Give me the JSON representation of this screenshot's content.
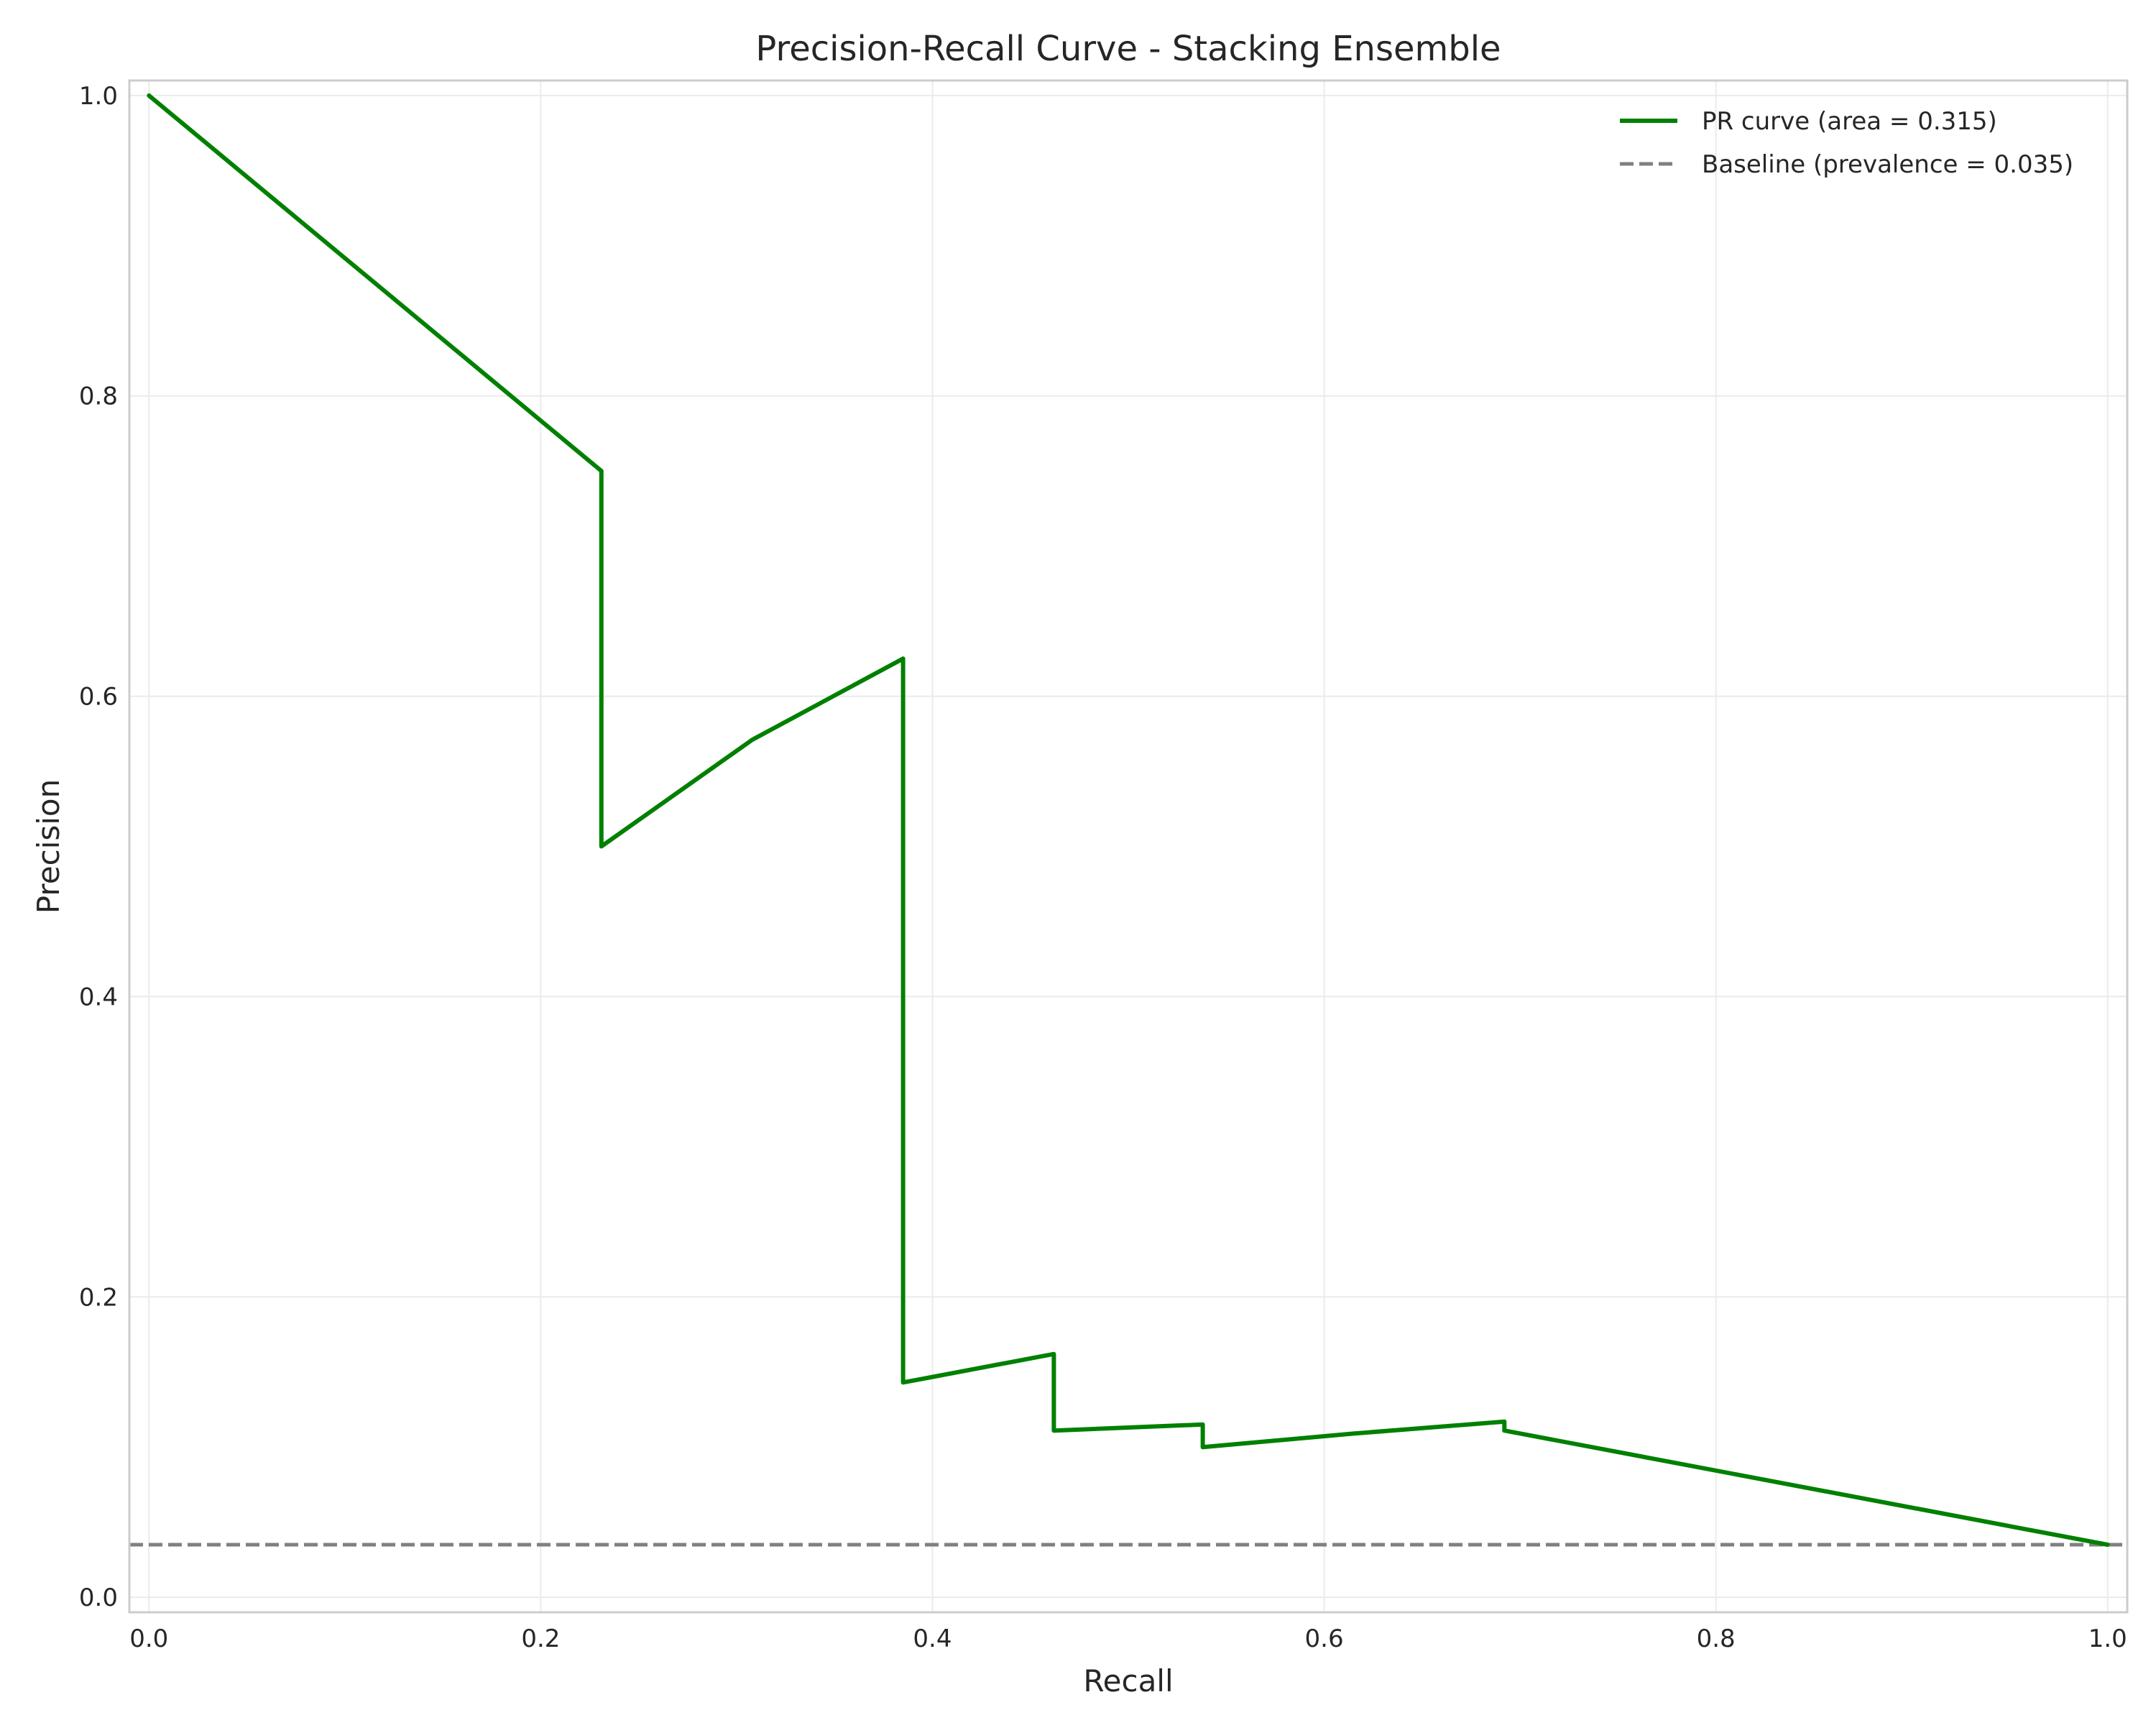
{
  "chart_data": {
    "type": "line",
    "title": "Precision-Recall Curve - Stacking Ensemble",
    "xlabel": "Recall",
    "ylabel": "Precision",
    "xlim": [
      -0.01,
      1.01
    ],
    "ylim": [
      -0.01,
      1.01
    ],
    "x_ticks": [
      0.0,
      0.2,
      0.4,
      0.6,
      0.8,
      1.0
    ],
    "y_ticks": [
      0.0,
      0.2,
      0.4,
      0.6,
      0.8,
      1.0
    ],
    "x_tick_labels": [
      "0.0",
      "0.2",
      "0.4",
      "0.6",
      "0.8",
      "1.0"
    ],
    "y_tick_labels": [
      "0.0",
      "0.2",
      "0.4",
      "0.6",
      "0.8",
      "1.0"
    ],
    "grid": true,
    "legend_position": "top-right",
    "series": [
      {
        "name": "PR curve (area = 0.315)",
        "color": "#008000",
        "style": "solid",
        "x": [
          0.0,
          0.231,
          0.231,
          0.308,
          0.385,
          0.385,
          0.462,
          0.462,
          0.538,
          0.538,
          0.615,
          0.692,
          0.692,
          1.0
        ],
        "y": [
          1.0,
          0.75,
          0.5,
          0.571,
          0.625,
          0.143,
          0.162,
          0.111,
          0.115,
          0.1,
          0.109,
          0.117,
          0.111,
          0.035
        ]
      },
      {
        "name": "Baseline (prevalence = 0.035)",
        "color": "#808080",
        "style": "dashed",
        "x": [
          -0.01,
          1.01
        ],
        "y": [
          0.035,
          0.035
        ]
      }
    ]
  }
}
